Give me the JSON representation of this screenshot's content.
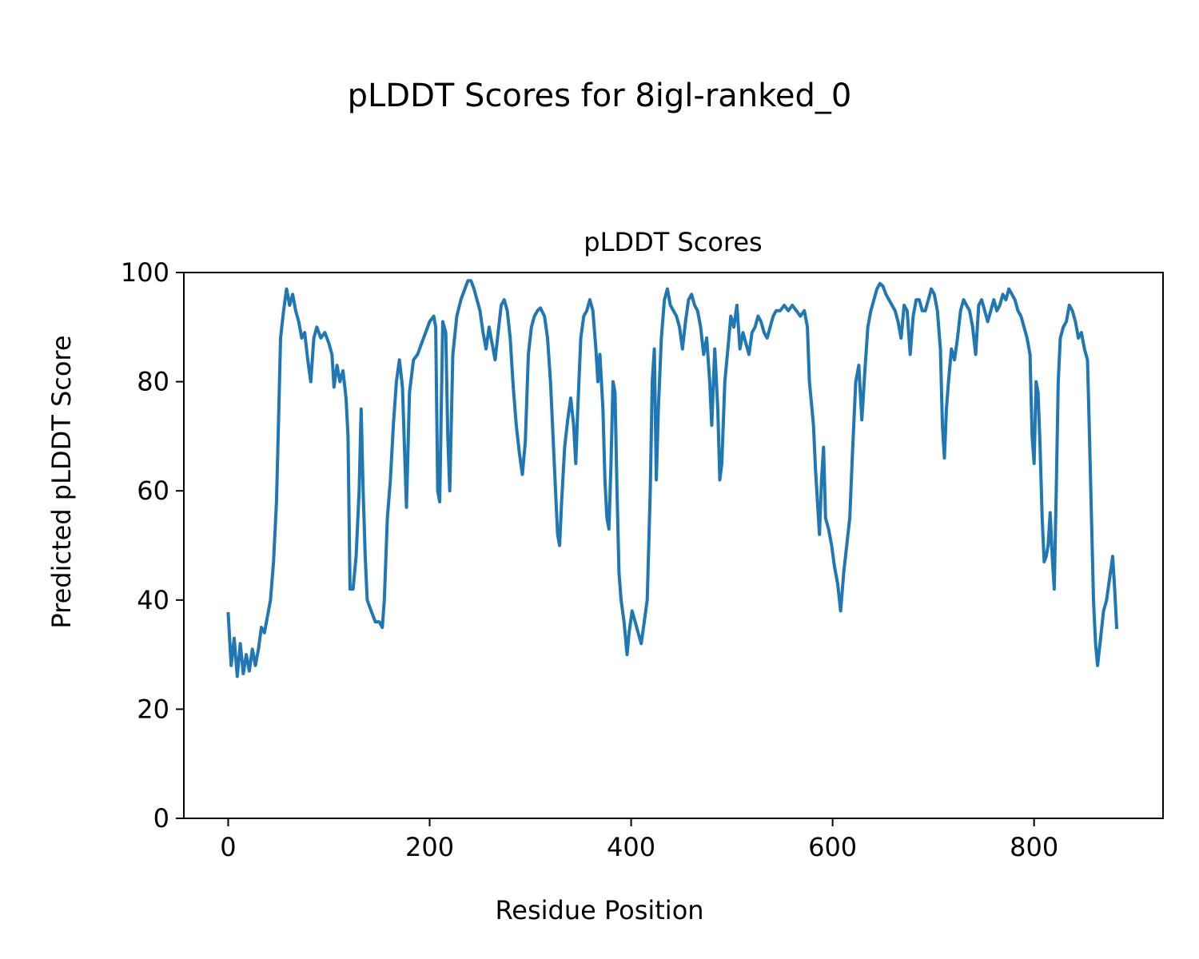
{
  "figure": {
    "suptitle": "pLDDT Scores for 8igl-ranked_0"
  },
  "chart_data": {
    "type": "line",
    "title": "pLDDT Scores",
    "xlabel": "Residue Position",
    "ylabel": "Predicted pLDDT Score",
    "xlim": [
      -44,
      928
    ],
    "ylim": [
      0,
      100
    ],
    "xticks": [
      0,
      200,
      400,
      600,
      800
    ],
    "yticks": [
      0,
      20,
      40,
      60,
      80,
      100
    ],
    "grid": false,
    "line_color": "#1f77b4",
    "series": [
      {
        "points": [
          [
            0,
            37.5
          ],
          [
            3,
            28
          ],
          [
            6,
            33
          ],
          [
            9,
            26
          ],
          [
            12,
            32
          ],
          [
            15,
            26.5
          ],
          [
            18,
            30
          ],
          [
            21,
            27
          ],
          [
            24,
            31
          ],
          [
            27,
            28
          ],
          [
            30,
            31
          ],
          [
            33,
            35
          ],
          [
            36,
            34
          ],
          [
            39,
            37
          ],
          [
            42,
            40
          ],
          [
            45,
            47
          ],
          [
            48,
            58
          ],
          [
            50,
            73
          ],
          [
            52,
            88
          ],
          [
            55,
            93
          ],
          [
            58,
            97
          ],
          [
            61,
            94
          ],
          [
            64,
            96
          ],
          [
            67,
            93
          ],
          [
            70,
            91
          ],
          [
            73,
            88
          ],
          [
            76,
            89
          ],
          [
            79,
            84
          ],
          [
            82,
            80
          ],
          [
            85,
            88
          ],
          [
            88,
            90
          ],
          [
            92,
            88
          ],
          [
            96,
            89
          ],
          [
            100,
            87
          ],
          [
            103,
            85
          ],
          [
            105,
            79
          ],
          [
            108,
            83
          ],
          [
            111,
            80
          ],
          [
            114,
            82
          ],
          [
            117,
            77
          ],
          [
            119,
            70
          ],
          [
            121,
            42
          ],
          [
            124,
            42
          ],
          [
            127,
            48
          ],
          [
            130,
            60
          ],
          [
            132,
            75
          ],
          [
            134,
            60
          ],
          [
            136,
            48
          ],
          [
            138,
            40
          ],
          [
            142,
            38
          ],
          [
            146,
            36
          ],
          [
            150,
            36
          ],
          [
            153,
            35
          ],
          [
            155,
            40
          ],
          [
            158,
            55
          ],
          [
            161,
            62
          ],
          [
            164,
            72
          ],
          [
            167,
            80
          ],
          [
            170,
            84
          ],
          [
            173,
            79
          ],
          [
            175,
            68
          ],
          [
            177,
            57
          ],
          [
            180,
            78
          ],
          [
            184,
            84
          ],
          [
            188,
            85
          ],
          [
            192,
            87
          ],
          [
            196,
            89
          ],
          [
            200,
            91
          ],
          [
            204,
            92
          ],
          [
            206,
            90
          ],
          [
            208,
            60
          ],
          [
            210,
            58
          ],
          [
            213,
            91
          ],
          [
            216,
            89
          ],
          [
            218,
            70
          ],
          [
            220,
            60
          ],
          [
            223,
            85
          ],
          [
            227,
            92
          ],
          [
            231,
            95
          ],
          [
            235,
            97
          ],
          [
            238,
            98.5
          ],
          [
            241,
            98.5
          ],
          [
            244,
            97
          ],
          [
            247,
            95
          ],
          [
            250,
            93
          ],
          [
            253,
            89
          ],
          [
            256,
            86
          ],
          [
            259,
            90
          ],
          [
            262,
            87
          ],
          [
            265,
            84
          ],
          [
            268,
            89
          ],
          [
            271,
            94
          ],
          [
            274,
            95
          ],
          [
            277,
            93
          ],
          [
            280,
            88
          ],
          [
            283,
            79
          ],
          [
            286,
            72
          ],
          [
            289,
            67
          ],
          [
            292,
            63
          ],
          [
            295,
            69
          ],
          [
            298,
            85
          ],
          [
            301,
            90
          ],
          [
            304,
            92
          ],
          [
            307,
            93
          ],
          [
            310,
            93.5
          ],
          [
            314,
            92
          ],
          [
            317,
            88
          ],
          [
            320,
            80
          ],
          [
            323,
            68
          ],
          [
            325,
            60
          ],
          [
            327,
            52
          ],
          [
            329,
            50
          ],
          [
            331,
            58
          ],
          [
            334,
            68
          ],
          [
            337,
            73
          ],
          [
            340,
            77
          ],
          [
            343,
            72
          ],
          [
            345,
            65
          ],
          [
            347,
            75
          ],
          [
            350,
            88
          ],
          [
            353,
            92
          ],
          [
            356,
            93
          ],
          [
            359,
            95
          ],
          [
            362,
            93
          ],
          [
            365,
            86
          ],
          [
            367,
            80
          ],
          [
            369,
            85
          ],
          [
            372,
            75
          ],
          [
            374,
            62
          ],
          [
            376,
            55
          ],
          [
            378,
            53
          ],
          [
            380,
            65
          ],
          [
            382,
            80
          ],
          [
            384,
            78
          ],
          [
            386,
            60
          ],
          [
            388,
            45
          ],
          [
            390,
            40
          ],
          [
            393,
            36
          ],
          [
            396,
            30
          ],
          [
            398,
            34
          ],
          [
            401,
            38
          ],
          [
            404,
            36
          ],
          [
            407,
            34
          ],
          [
            410,
            32
          ],
          [
            413,
            36
          ],
          [
            416,
            40
          ],
          [
            419,
            60
          ],
          [
            421,
            80
          ],
          [
            423,
            86
          ],
          [
            425,
            62
          ],
          [
            427,
            75
          ],
          [
            430,
            88
          ],
          [
            433,
            95
          ],
          [
            436,
            97
          ],
          [
            439,
            94
          ],
          [
            442,
            93
          ],
          [
            445,
            92
          ],
          [
            448,
            90
          ],
          [
            451,
            86
          ],
          [
            454,
            91
          ],
          [
            457,
            95
          ],
          [
            460,
            96
          ],
          [
            463,
            94
          ],
          [
            466,
            93
          ],
          [
            469,
            90
          ],
          [
            472,
            85
          ],
          [
            475,
            88
          ],
          [
            478,
            80
          ],
          [
            480,
            72
          ],
          [
            483,
            86
          ],
          [
            486,
            75
          ],
          [
            488,
            62
          ],
          [
            490,
            65
          ],
          [
            493,
            80
          ],
          [
            496,
            86
          ],
          [
            499,
            92
          ],
          [
            502,
            90
          ],
          [
            505,
            94
          ],
          [
            508,
            86
          ],
          [
            511,
            89
          ],
          [
            514,
            87
          ],
          [
            517,
            85
          ],
          [
            520,
            89
          ],
          [
            523,
            90
          ],
          [
            526,
            92
          ],
          [
            529,
            91
          ],
          [
            532,
            89
          ],
          [
            535,
            88
          ],
          [
            538,
            90
          ],
          [
            541,
            92
          ],
          [
            544,
            93
          ],
          [
            548,
            93
          ],
          [
            552,
            94
          ],
          [
            556,
            93
          ],
          [
            560,
            94
          ],
          [
            564,
            93
          ],
          [
            568,
            92
          ],
          [
            572,
            93
          ],
          [
            575,
            90
          ],
          [
            577,
            80
          ],
          [
            579,
            76
          ],
          [
            581,
            72
          ],
          [
            583,
            64
          ],
          [
            585,
            58
          ],
          [
            587,
            52
          ],
          [
            589,
            62
          ],
          [
            591,
            68
          ],
          [
            593,
            55
          ],
          [
            596,
            53
          ],
          [
            599,
            50
          ],
          [
            602,
            46
          ],
          [
            605,
            43
          ],
          [
            608,
            38
          ],
          [
            611,
            45
          ],
          [
            614,
            50
          ],
          [
            617,
            55
          ],
          [
            620,
            68
          ],
          [
            623,
            80
          ],
          [
            626,
            83
          ],
          [
            629,
            73
          ],
          [
            632,
            82
          ],
          [
            635,
            90
          ],
          [
            638,
            93
          ],
          [
            641,
            95
          ],
          [
            644,
            97
          ],
          [
            647,
            98
          ],
          [
            650,
            97.5
          ],
          [
            653,
            96
          ],
          [
            656,
            95
          ],
          [
            659,
            94
          ],
          [
            662,
            93
          ],
          [
            665,
            91
          ],
          [
            668,
            88
          ],
          [
            671,
            94
          ],
          [
            674,
            93
          ],
          [
            677,
            85
          ],
          [
            680,
            92
          ],
          [
            683,
            95
          ],
          [
            686,
            95
          ],
          [
            689,
            93
          ],
          [
            692,
            93
          ],
          [
            695,
            95
          ],
          [
            698,
            97
          ],
          [
            701,
            96
          ],
          [
            704,
            93
          ],
          [
            707,
            86
          ],
          [
            709,
            72
          ],
          [
            711,
            66
          ],
          [
            713,
            75
          ],
          [
            715,
            80
          ],
          [
            718,
            86
          ],
          [
            721,
            84
          ],
          [
            724,
            88
          ],
          [
            727,
            93
          ],
          [
            730,
            95
          ],
          [
            733,
            94
          ],
          [
            736,
            93
          ],
          [
            739,
            90
          ],
          [
            742,
            85
          ],
          [
            745,
            94
          ],
          [
            748,
            95
          ],
          [
            751,
            93
          ],
          [
            754,
            91
          ],
          [
            757,
            93
          ],
          [
            760,
            95
          ],
          [
            763,
            93
          ],
          [
            766,
            94
          ],
          [
            769,
            96
          ],
          [
            772,
            95
          ],
          [
            775,
            97
          ],
          [
            778,
            96
          ],
          [
            781,
            95
          ],
          [
            784,
            93
          ],
          [
            787,
            92
          ],
          [
            790,
            90
          ],
          [
            793,
            88
          ],
          [
            796,
            85
          ],
          [
            798,
            70
          ],
          [
            800,
            65
          ],
          [
            802,
            80
          ],
          [
            804,
            78
          ],
          [
            806,
            68
          ],
          [
            808,
            55
          ],
          [
            810,
            47
          ],
          [
            812,
            48
          ],
          [
            814,
            50
          ],
          [
            816,
            56
          ],
          [
            818,
            48
          ],
          [
            820,
            42
          ],
          [
            822,
            60
          ],
          [
            824,
            80
          ],
          [
            826,
            88
          ],
          [
            829,
            90
          ],
          [
            832,
            91
          ],
          [
            835,
            94
          ],
          [
            838,
            93
          ],
          [
            841,
            91
          ],
          [
            844,
            88
          ],
          [
            847,
            89
          ],
          [
            850,
            86
          ],
          [
            853,
            84
          ],
          [
            855,
            70
          ],
          [
            857,
            55
          ],
          [
            859,
            40
          ],
          [
            861,
            32
          ],
          [
            863,
            28
          ],
          [
            866,
            33
          ],
          [
            869,
            38
          ],
          [
            872,
            40
          ],
          [
            875,
            44
          ],
          [
            878,
            48
          ],
          [
            880,
            42
          ],
          [
            882,
            35
          ]
        ]
      }
    ]
  }
}
